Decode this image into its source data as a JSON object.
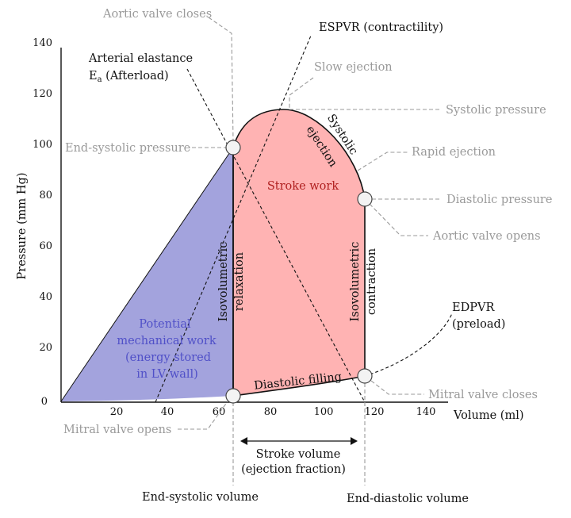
{
  "axes": {
    "y_label": "Pressure (mm Hg)",
    "x_label": "Volume (ml)",
    "y_ticks": [
      "0",
      "20",
      "40",
      "60",
      "80",
      "100",
      "120",
      "140"
    ],
    "x_ticks": [
      "20",
      "40",
      "60",
      "80",
      "100",
      "120",
      "140"
    ]
  },
  "annotations": {
    "aortic_valve_closes": "Aortic valve closes",
    "espvr": "ESPVR (contractility)",
    "arterial_elastance_1": "Arterial elastance",
    "arterial_elastance_2_main": "E",
    "arterial_elastance_2_sub": "a",
    "arterial_elastance_2_rest": " (Afterload)",
    "slow_ejection": "Slow ejection",
    "systolic_pressure": "Systolic pressure",
    "end_systolic_pressure": "End-systolic pressure",
    "rapid_ejection": "Rapid ejection",
    "diastolic_pressure": "Diastolic pressure",
    "aortic_valve_opens": "Aortic valve opens",
    "edpvr_1": "EDPVR",
    "edpvr_2": "(preload)",
    "mitral_valve_closes": "Mitral valve closes",
    "mitral_valve_opens": "Mitral valve opens",
    "end_systolic_volume": "End-systolic volume",
    "end_diastolic_volume": "End-diastolic volume",
    "stroke_volume_1": "Stroke volume",
    "stroke_volume_2": "(ejection fraction)"
  },
  "regions": {
    "stroke_work": "Stroke work",
    "systolic_ejection_1": "Systolic",
    "systolic_ejection_2": "ejection",
    "isovolumetric_relaxation_1": "Isovolumetric",
    "isovolumetric_relaxation_2": "relaxation",
    "isovolumetric_contraction_1": "Isovolumetric",
    "isovolumetric_contraction_2": "contraction",
    "diastolic_filling": "Diastolic filling",
    "potential_1": "Potential",
    "potential_2": "mechanical work",
    "potential_3": "(energy stored",
    "potential_4": "in LV wall)"
  },
  "colors": {
    "stroke_work_fill": "#ffb3b3",
    "potential_fill": "#a3a3dd",
    "axis": "#111111",
    "gray_text": "#9a9a9a",
    "blue_text": "#5050c8",
    "red_text": "#b02020"
  }
}
